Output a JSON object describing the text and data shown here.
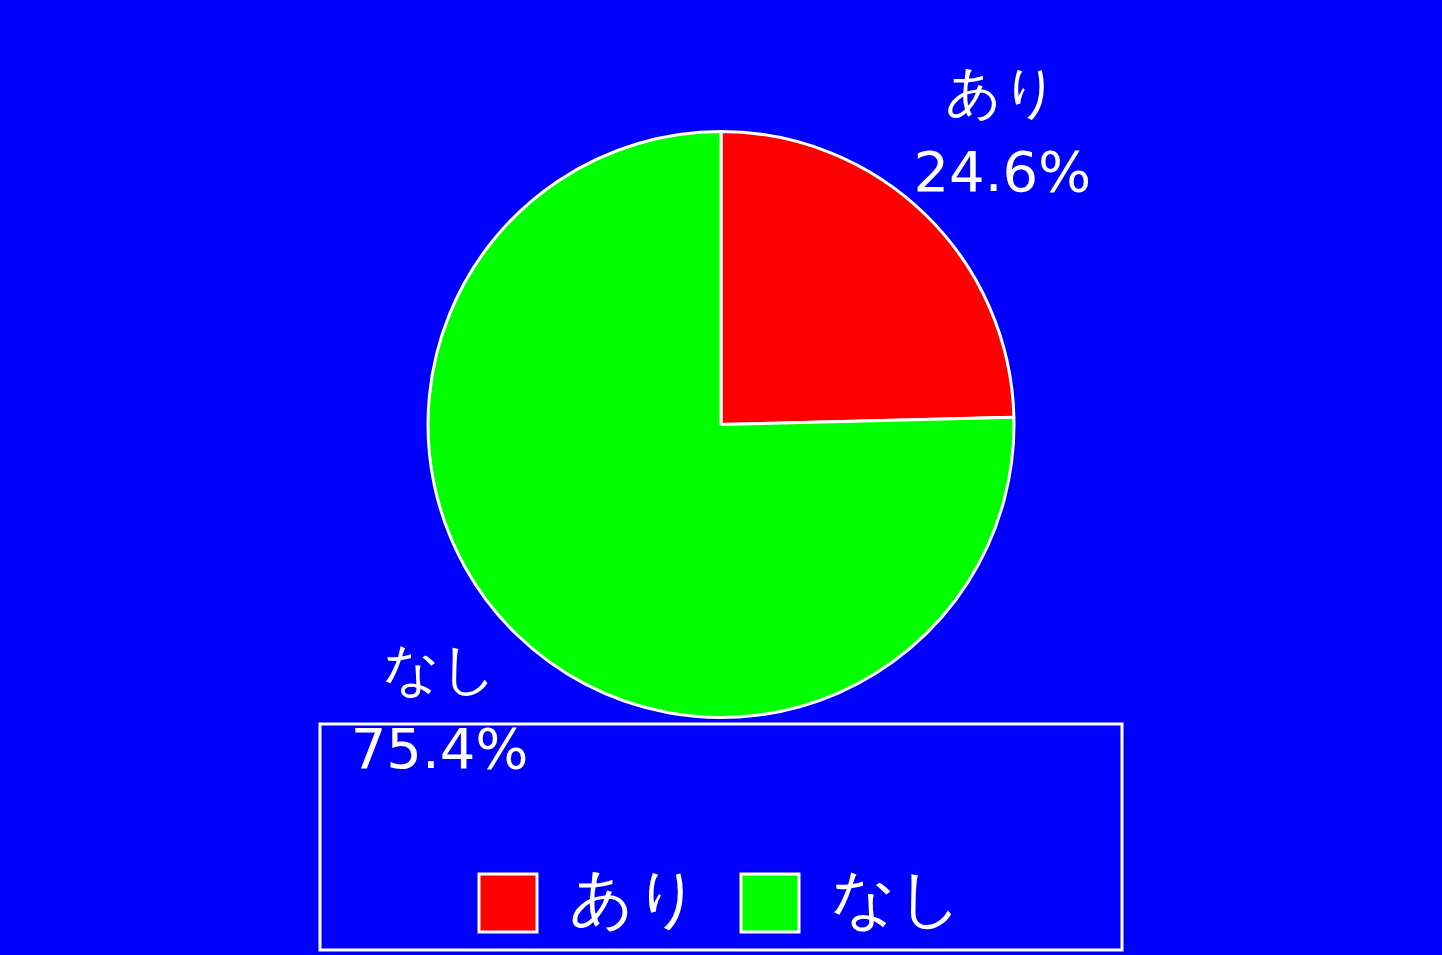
{
  "chart_data": {
    "type": "pie",
    "categories": [
      "あり",
      "なし"
    ],
    "values": [
      24.6,
      75.4
    ],
    "colors": [
      "#ff0000",
      "#00ff00"
    ],
    "value_labels": [
      "24.6%",
      "75.4%"
    ],
    "legend": "bottom"
  }
}
